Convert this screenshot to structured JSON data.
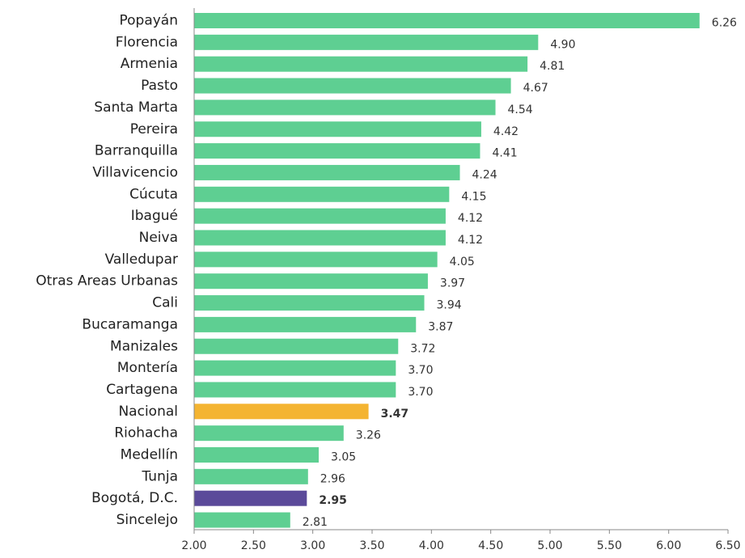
{
  "chart_data": {
    "type": "bar",
    "orientation": "horizontal",
    "title": "",
    "xlabel": "",
    "ylabel": "",
    "categories": [
      "Popayán",
      "Florencia",
      "Armenia",
      "Pasto",
      "Santa Marta",
      "Pereira",
      "Barranquilla",
      "Villavicencio",
      "Cúcuta",
      "Ibagué",
      "Neiva",
      "Valledupar",
      "Otras Areas Urbanas",
      "Cali",
      "Bucaramanga",
      "Manizales",
      "Montería",
      "Cartagena",
      "Nacional",
      "Riohacha",
      "Medellín",
      "Tunja",
      "Bogotá, D.C.",
      "Sincelejo"
    ],
    "values": [
      6.26,
      4.9,
      4.81,
      4.67,
      4.54,
      4.42,
      4.41,
      4.24,
      4.15,
      4.12,
      4.12,
      4.05,
      3.97,
      3.94,
      3.87,
      3.72,
      3.7,
      3.7,
      3.47,
      3.26,
      3.05,
      2.96,
      2.95,
      2.81
    ],
    "value_labels": [
      "6.26",
      "4.90",
      "4.81",
      "4.67",
      "4.54",
      "4.42",
      "4.41",
      "4.24",
      "4.15",
      "4.12",
      "4.12",
      "4.05",
      "3.97",
      "3.94",
      "3.87",
      "3.72",
      "3.70",
      "3.70",
      "3.47",
      "3.26",
      "3.05",
      "2.96",
      "2.95",
      "2.81"
    ],
    "xlim": [
      2.0,
      6.5
    ],
    "x_ticks": [
      "2.00",
      "2.50",
      "3.00",
      "3.50",
      "4.00",
      "4.50",
      "5.00",
      "5.50",
      "6.00",
      "6.50"
    ],
    "grid": false,
    "legend": "none",
    "colors": {
      "default": "#5ecf92",
      "highlight": {
        "Nacional": "#f4b431",
        "Bogotá, D.C.": "#5b4a9a"
      },
      "highlight_label": {
        "Nacional": "#f4b431",
        "Bogotá, D.C.": "#5b4a9a"
      }
    }
  }
}
